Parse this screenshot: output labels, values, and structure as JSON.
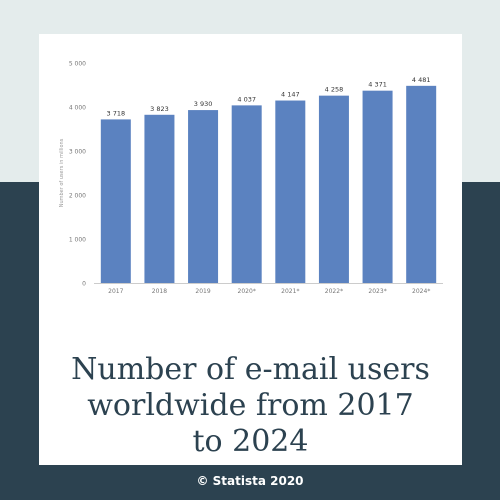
{
  "colors": {
    "background_top": "#e4ecec",
    "background_bottom": "#2c4250",
    "card": "#ffffff",
    "bar": "#5b82c0",
    "headline_text": "#2c4250",
    "footer_text": "#ffffff"
  },
  "headline": {
    "lines": [
      "Number of e-mail users",
      "worldwide from 2017",
      "to 2024"
    ]
  },
  "footer": {
    "credit": "© Statista 2020"
  },
  "chart_data": {
    "type": "bar",
    "categories": [
      "2017",
      "2018",
      "2019",
      "2020*",
      "2021*",
      "2022*",
      "2023*",
      "2024*"
    ],
    "series": [
      {
        "values": [
          3718,
          3823,
          3930,
          4037,
          4147,
          4258,
          4371,
          4481
        ]
      }
    ],
    "value_labels": [
      "3 718",
      "3 823",
      "3 930",
      "4 037",
      "4 147",
      "4 258",
      "4 371",
      "4 481"
    ],
    "ytick_values": [
      0,
      1000,
      2000,
      3000,
      4000,
      5000
    ],
    "ytick_labels": [
      "0",
      "1 000",
      "2 000",
      "3 000",
      "4 000",
      "5 000"
    ],
    "ylabel": "Number of users in millions",
    "xlabel": "",
    "ylim": [
      0,
      5000
    ],
    "grid": false,
    "legend": "none"
  }
}
